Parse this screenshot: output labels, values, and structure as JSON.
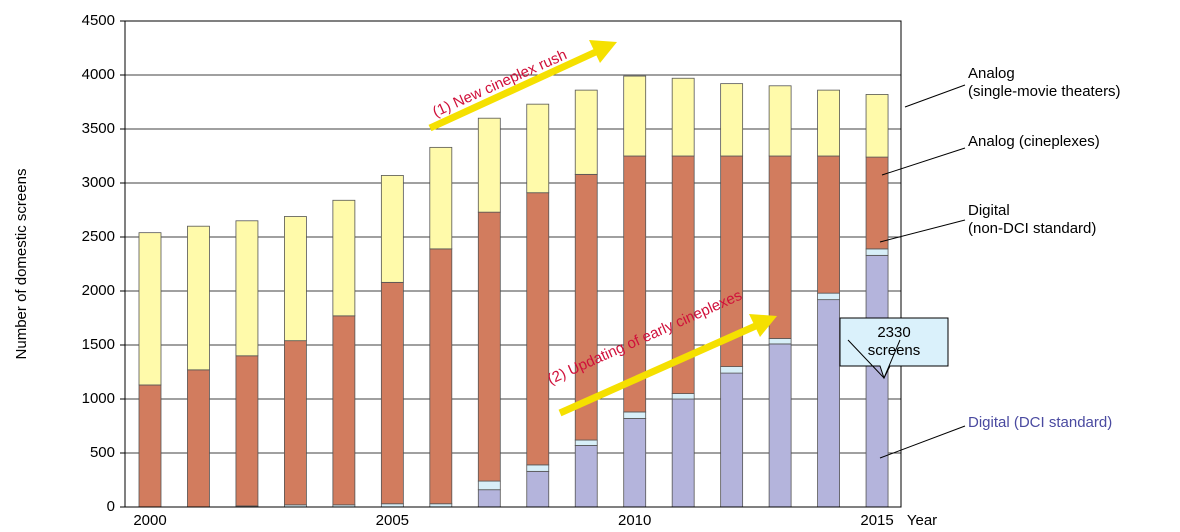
{
  "chart_data": {
    "type": "stacked_bar",
    "y_label": "Number of domestic screens",
    "x_label": "Year",
    "categories": [
      "2000",
      null,
      null,
      null,
      null,
      "2005",
      null,
      null,
      null,
      null,
      "2010",
      null,
      null,
      null,
      null,
      "2015"
    ],
    "series": [
      {
        "name": "Digital (DCI standard)",
        "color": "#b4b4dc",
        "values": [
          0,
          0,
          0,
          0,
          0,
          0,
          0,
          160,
          330,
          570,
          820,
          1000,
          1240,
          1510,
          1920,
          2330
        ]
      },
      {
        "name": "Digital\n(non-DCI standard)",
        "color": "#d8eff8",
        "values": [
          0,
          0,
          10,
          20,
          20,
          30,
          30,
          80,
          60,
          50,
          60,
          50,
          60,
          50,
          60,
          60
        ]
      },
      {
        "name": "Analog (cineplexes)",
        "color": "#d27c5e",
        "values": [
          1130,
          1270,
          1390,
          1520,
          1750,
          2050,
          2360,
          2490,
          2520,
          2460,
          2370,
          2200,
          1950,
          1690,
          1270,
          850
        ]
      },
      {
        "name": "Analog\n(single-movie theaters)",
        "color": "#fffaaa",
        "values": [
          1410,
          1330,
          1250,
          1150,
          1070,
          990,
          940,
          870,
          820,
          780,
          740,
          720,
          670,
          650,
          610,
          580
        ]
      }
    ],
    "ylim": [
      0,
      4500
    ],
    "yticks": [
      0,
      500,
      1000,
      1500,
      2000,
      2500,
      3000,
      3500,
      4000,
      4500
    ],
    "grid": true,
    "annotations": [
      "(1) New cineplex rush",
      "(2) Updating of early cineplexes"
    ],
    "callout": "2330\nscreens"
  }
}
